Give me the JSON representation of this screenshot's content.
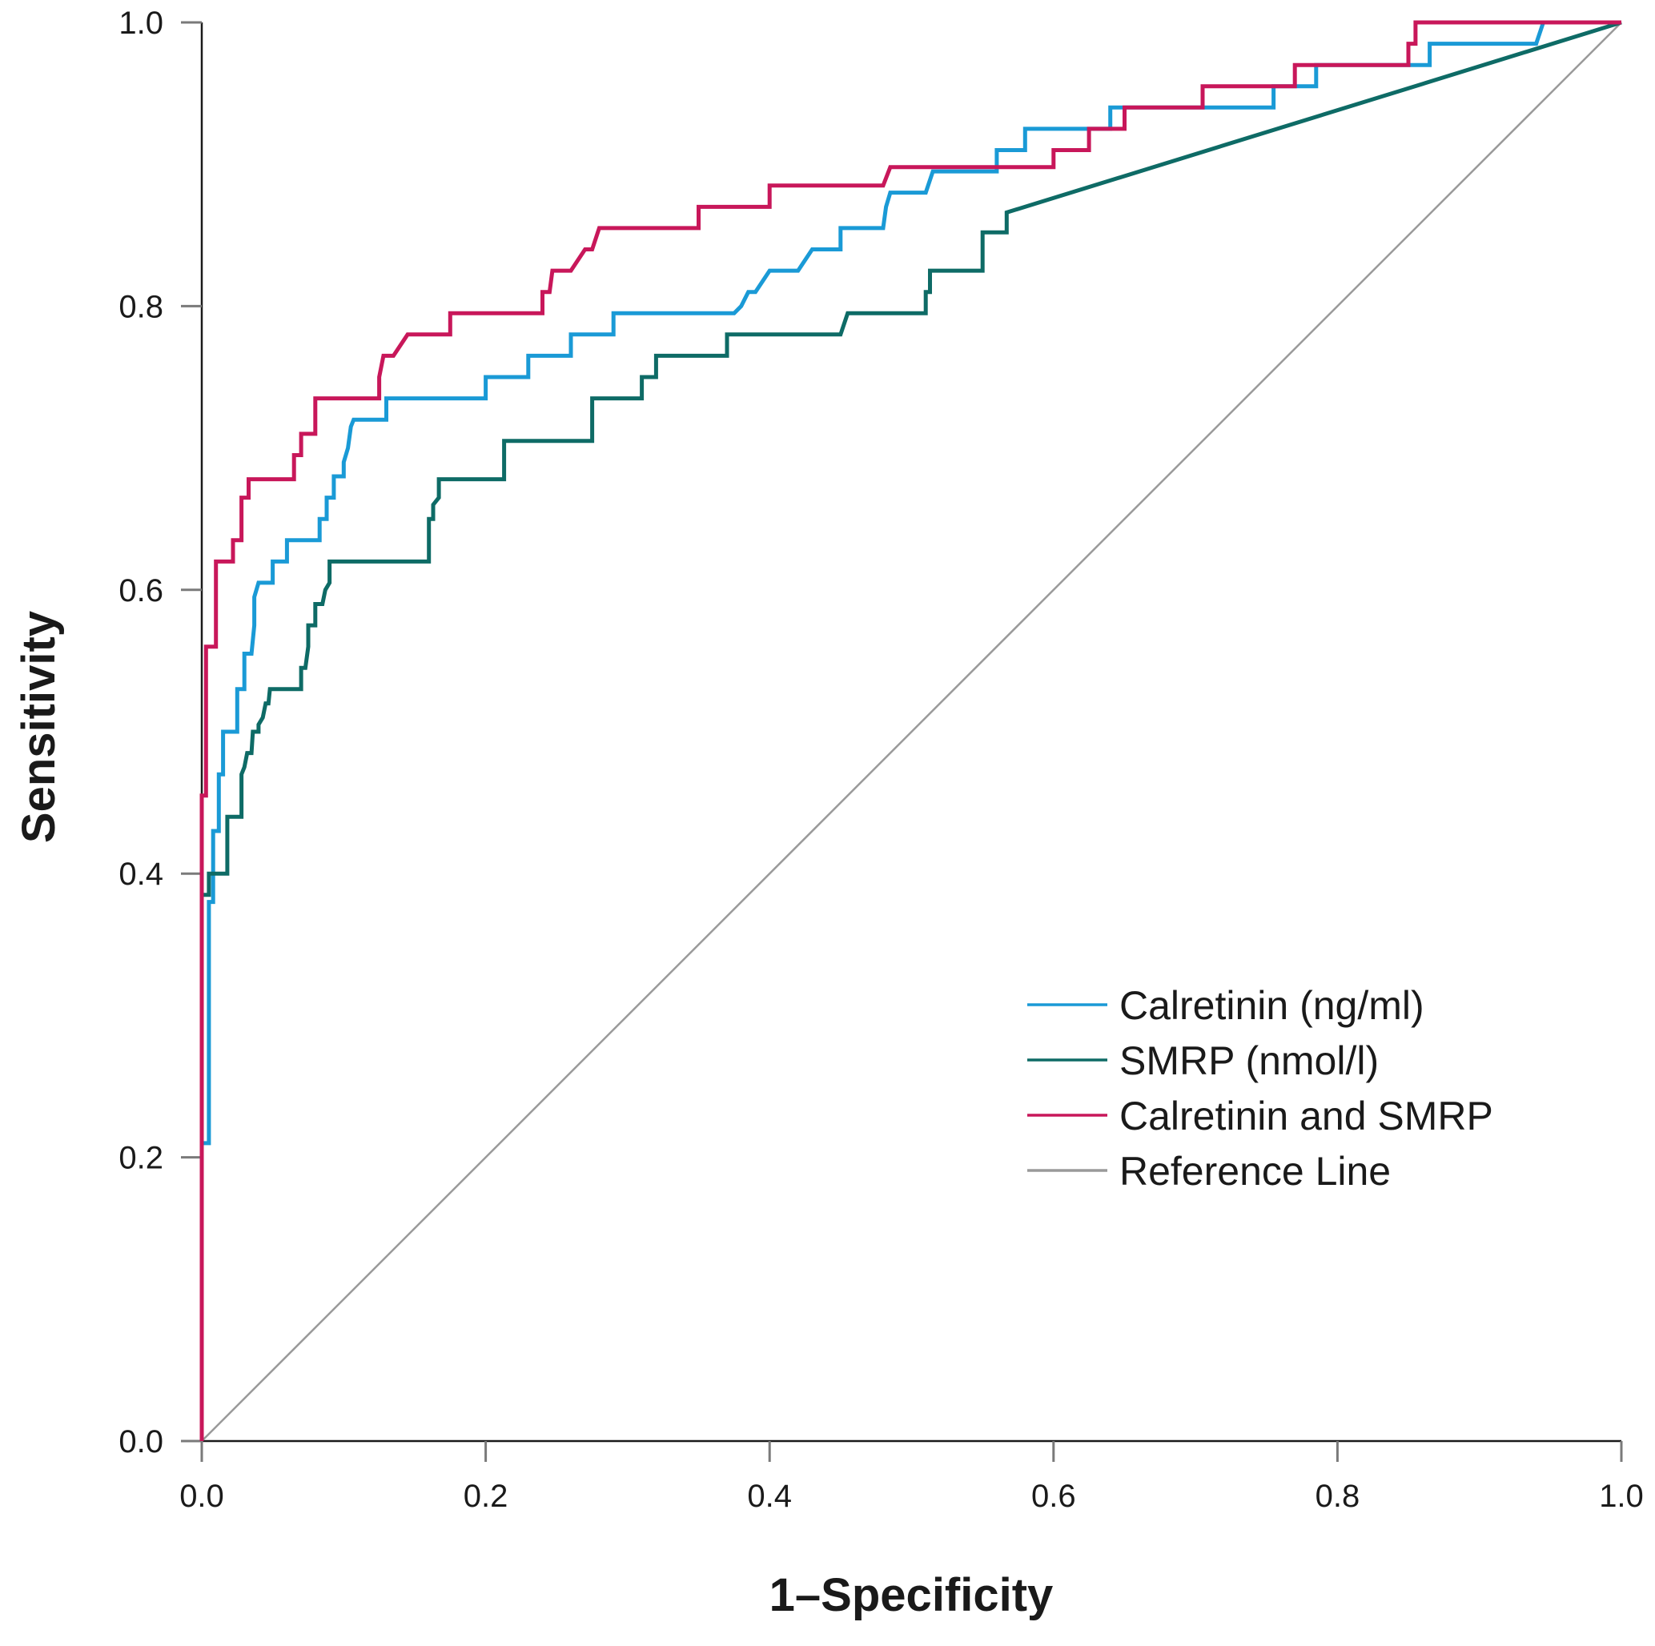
{
  "chart_data": {
    "type": "line",
    "title": "",
    "xlabel": "1–Specificity",
    "ylabel": "Sensitivity",
    "xlim": [
      0,
      1
    ],
    "ylim": [
      0,
      1
    ],
    "grid": false,
    "legend_position": "bottom-right",
    "x_ticks": [
      {
        "value": 0.0,
        "label": "0.0"
      },
      {
        "value": 0.2,
        "label": "0.2"
      },
      {
        "value": 0.4,
        "label": "0.4"
      },
      {
        "value": 0.6,
        "label": "0.6"
      },
      {
        "value": 0.8,
        "label": "0.8"
      },
      {
        "value": 1.0,
        "label": "1.0"
      }
    ],
    "y_ticks": [
      {
        "value": 0.0,
        "label": "0.0"
      },
      {
        "value": 0.2,
        "label": "0.2"
      },
      {
        "value": 0.4,
        "label": "0.4"
      },
      {
        "value": 0.6,
        "label": "0.6"
      },
      {
        "value": 0.8,
        "label": "0.8"
      },
      {
        "value": 1.0,
        "label": "1.0"
      }
    ],
    "series": [
      {
        "name": "Calretinin (ng/ml)",
        "color": "#1a9ad6",
        "points": [
          [
            0,
            0
          ],
          [
            0,
            0.21
          ],
          [
            0.005,
            0.21
          ],
          [
            0.005,
            0.38
          ],
          [
            0.008,
            0.38
          ],
          [
            0.008,
            0.43
          ],
          [
            0.012,
            0.43
          ],
          [
            0.012,
            0.47
          ],
          [
            0.015,
            0.47
          ],
          [
            0.015,
            0.5
          ],
          [
            0.025,
            0.5
          ],
          [
            0.025,
            0.53
          ],
          [
            0.03,
            0.53
          ],
          [
            0.03,
            0.555
          ],
          [
            0.035,
            0.555
          ],
          [
            0.037,
            0.575
          ],
          [
            0.037,
            0.595
          ],
          [
            0.04,
            0.605
          ],
          [
            0.05,
            0.605
          ],
          [
            0.05,
            0.62
          ],
          [
            0.06,
            0.62
          ],
          [
            0.06,
            0.635
          ],
          [
            0.08,
            0.635
          ],
          [
            0.08,
            0.635
          ],
          [
            0.083,
            0.635
          ],
          [
            0.083,
            0.65
          ],
          [
            0.088,
            0.65
          ],
          [
            0.088,
            0.665
          ],
          [
            0.093,
            0.665
          ],
          [
            0.093,
            0.68
          ],
          [
            0.1,
            0.68
          ],
          [
            0.1,
            0.69
          ],
          [
            0.103,
            0.7
          ],
          [
            0.105,
            0.715
          ],
          [
            0.107,
            0.72
          ],
          [
            0.13,
            0.72
          ],
          [
            0.13,
            0.735
          ],
          [
            0.2,
            0.735
          ],
          [
            0.2,
            0.75
          ],
          [
            0.23,
            0.75
          ],
          [
            0.23,
            0.765
          ],
          [
            0.26,
            0.765
          ],
          [
            0.26,
            0.78
          ],
          [
            0.29,
            0.78
          ],
          [
            0.29,
            0.795
          ],
          [
            0.375,
            0.795
          ],
          [
            0.38,
            0.8
          ],
          [
            0.385,
            0.81
          ],
          [
            0.39,
            0.81
          ],
          [
            0.4,
            0.825
          ],
          [
            0.42,
            0.825
          ],
          [
            0.43,
            0.84
          ],
          [
            0.45,
            0.84
          ],
          [
            0.45,
            0.855
          ],
          [
            0.48,
            0.855
          ],
          [
            0.482,
            0.87
          ],
          [
            0.485,
            0.88
          ],
          [
            0.51,
            0.88
          ],
          [
            0.515,
            0.895
          ],
          [
            0.56,
            0.895
          ],
          [
            0.56,
            0.91
          ],
          [
            0.58,
            0.91
          ],
          [
            0.58,
            0.925
          ],
          [
            0.64,
            0.925
          ],
          [
            0.64,
            0.94
          ],
          [
            0.66,
            0.94
          ],
          [
            0.66,
            0.94
          ],
          [
            0.755,
            0.94
          ],
          [
            0.755,
            0.955
          ],
          [
            0.785,
            0.955
          ],
          [
            0.785,
            0.97
          ],
          [
            0.85,
            0.97
          ],
          [
            0.865,
            0.97
          ],
          [
            0.865,
            0.985
          ],
          [
            0.94,
            0.985
          ],
          [
            0.945,
            1.0
          ],
          [
            1.0,
            1.0
          ]
        ]
      },
      {
        "name": "SMRP (nmol/l)",
        "color": "#0e6b66",
        "points": [
          [
            0,
            0
          ],
          [
            0,
            0.385
          ],
          [
            0.005,
            0.385
          ],
          [
            0.005,
            0.4
          ],
          [
            0.018,
            0.4
          ],
          [
            0.018,
            0.44
          ],
          [
            0.028,
            0.44
          ],
          [
            0.028,
            0.47
          ],
          [
            0.03,
            0.475
          ],
          [
            0.032,
            0.485
          ],
          [
            0.035,
            0.485
          ],
          [
            0.036,
            0.5
          ],
          [
            0.04,
            0.5
          ],
          [
            0.04,
            0.505
          ],
          [
            0.043,
            0.51
          ],
          [
            0.045,
            0.52
          ],
          [
            0.047,
            0.52
          ],
          [
            0.048,
            0.53
          ],
          [
            0.07,
            0.53
          ],
          [
            0.07,
            0.545
          ],
          [
            0.073,
            0.545
          ],
          [
            0.075,
            0.56
          ],
          [
            0.075,
            0.575
          ],
          [
            0.08,
            0.575
          ],
          [
            0.08,
            0.59
          ],
          [
            0.085,
            0.59
          ],
          [
            0.087,
            0.6
          ],
          [
            0.09,
            0.605
          ],
          [
            0.09,
            0.62
          ],
          [
            0.16,
            0.62
          ],
          [
            0.16,
            0.65
          ],
          [
            0.163,
            0.65
          ],
          [
            0.163,
            0.66
          ],
          [
            0.167,
            0.665
          ],
          [
            0.167,
            0.678
          ],
          [
            0.213,
            0.678
          ],
          [
            0.213,
            0.705
          ],
          [
            0.275,
            0.705
          ],
          [
            0.275,
            0.735
          ],
          [
            0.31,
            0.735
          ],
          [
            0.31,
            0.75
          ],
          [
            0.32,
            0.75
          ],
          [
            0.32,
            0.765
          ],
          [
            0.37,
            0.765
          ],
          [
            0.37,
            0.78
          ],
          [
            0.45,
            0.78
          ],
          [
            0.455,
            0.795
          ],
          [
            0.51,
            0.795
          ],
          [
            0.51,
            0.81
          ],
          [
            0.513,
            0.81
          ],
          [
            0.513,
            0.825
          ],
          [
            0.55,
            0.825
          ],
          [
            0.55,
            0.852
          ],
          [
            0.567,
            0.852
          ],
          [
            0.567,
            0.866
          ],
          [
            1.0,
            1.0
          ]
        ]
      },
      {
        "name": "Calretinin and SMRP",
        "color": "#c8175a",
        "points": [
          [
            0,
            0
          ],
          [
            0,
            0.455
          ],
          [
            0.003,
            0.455
          ],
          [
            0.003,
            0.56
          ],
          [
            0.01,
            0.56
          ],
          [
            0.01,
            0.62
          ],
          [
            0.022,
            0.62
          ],
          [
            0.022,
            0.635
          ],
          [
            0.028,
            0.635
          ],
          [
            0.028,
            0.665
          ],
          [
            0.033,
            0.665
          ],
          [
            0.033,
            0.678
          ],
          [
            0.065,
            0.678
          ],
          [
            0.065,
            0.695
          ],
          [
            0.07,
            0.695
          ],
          [
            0.07,
            0.71
          ],
          [
            0.08,
            0.71
          ],
          [
            0.08,
            0.735
          ],
          [
            0.125,
            0.735
          ],
          [
            0.125,
            0.75
          ],
          [
            0.128,
            0.765
          ],
          [
            0.135,
            0.765
          ],
          [
            0.145,
            0.78
          ],
          [
            0.175,
            0.78
          ],
          [
            0.175,
            0.795
          ],
          [
            0.24,
            0.795
          ],
          [
            0.24,
            0.81
          ],
          [
            0.245,
            0.81
          ],
          [
            0.247,
            0.825
          ],
          [
            0.26,
            0.825
          ],
          [
            0.27,
            0.84
          ],
          [
            0.275,
            0.84
          ],
          [
            0.28,
            0.855
          ],
          [
            0.35,
            0.855
          ],
          [
            0.35,
            0.87
          ],
          [
            0.4,
            0.87
          ],
          [
            0.4,
            0.885
          ],
          [
            0.48,
            0.885
          ],
          [
            0.485,
            0.898
          ],
          [
            0.6,
            0.898
          ],
          [
            0.6,
            0.91
          ],
          [
            0.625,
            0.91
          ],
          [
            0.625,
            0.925
          ],
          [
            0.65,
            0.925
          ],
          [
            0.65,
            0.94
          ],
          [
            0.705,
            0.94
          ],
          [
            0.705,
            0.955
          ],
          [
            0.77,
            0.955
          ],
          [
            0.77,
            0.97
          ],
          [
            0.85,
            0.97
          ],
          [
            0.85,
            0.985
          ],
          [
            0.855,
            0.985
          ],
          [
            0.855,
            1.0
          ],
          [
            1.0,
            1.0
          ]
        ]
      },
      {
        "name": "Reference Line",
        "color": "#9a9a9a",
        "points": [
          [
            0,
            0
          ],
          [
            1,
            1
          ]
        ]
      }
    ]
  }
}
